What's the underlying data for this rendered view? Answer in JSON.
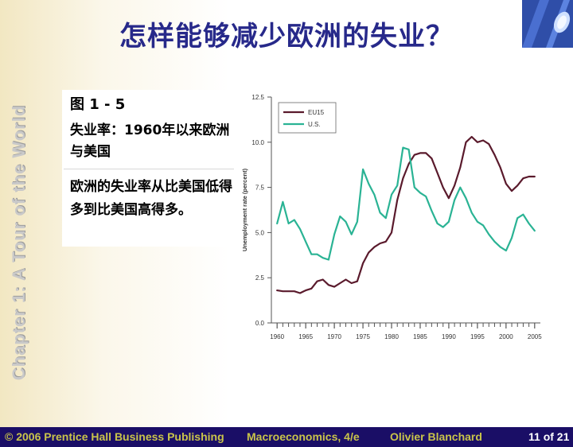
{
  "slide": {
    "title": "怎样能够减少欧洲的失业？",
    "side_label": "Chapter 1: A Tour of the World",
    "figure_number": "图 1 - 5",
    "figure_subtitle": "失业率：1960年以来欧洲与美国",
    "description": "欧洲的失业率从比美国低得多到比美国高得多。"
  },
  "footer": {
    "copyright": "© 2006 Prentice Hall Business Publishing",
    "book": "Macroeconomics, 4/e",
    "author": "Olivier Blanchard",
    "page": "11 of 21"
  },
  "colors": {
    "title": "#27298a",
    "footer_bg": "#1a0e66",
    "footer_gold": "#c9c44a",
    "eu15": "#5a1a2c",
    "us": "#2ab394"
  },
  "chart_data": {
    "type": "line",
    "ylabel": "Unemployment rate (percent)",
    "xlabel": "",
    "ylim": [
      0,
      12.5
    ],
    "xlim": [
      1959,
      2006
    ],
    "y_ticks": [
      "0.0",
      "2.5",
      "5.0",
      "7.5",
      "10.0",
      "12.5"
    ],
    "x_ticks": [
      "1960",
      "1965",
      "1970",
      "1975",
      "1980",
      "1985",
      "1990",
      "1995",
      "2000",
      "2005"
    ],
    "legend_position": "top-left",
    "grid": false,
    "series": [
      {
        "name": "EU15",
        "color": "#5a1a2c",
        "x": [
          1960,
          1961,
          1962,
          1963,
          1964,
          1965,
          1966,
          1967,
          1968,
          1969,
          1970,
          1971,
          1972,
          1973,
          1974,
          1975,
          1976,
          1977,
          1978,
          1979,
          1980,
          1981,
          1982,
          1983,
          1984,
          1985,
          1986,
          1987,
          1988,
          1989,
          1990,
          1991,
          1992,
          1993,
          1994,
          1995,
          1996,
          1997,
          1998,
          1999,
          2000,
          2001,
          2002,
          2003,
          2004,
          2005
        ],
        "y": [
          1.8,
          1.75,
          1.75,
          1.75,
          1.65,
          1.8,
          1.9,
          2.3,
          2.4,
          2.1,
          2.0,
          2.2,
          2.4,
          2.2,
          2.3,
          3.3,
          3.9,
          4.2,
          4.4,
          4.5,
          5.0,
          6.8,
          8.0,
          8.8,
          9.3,
          9.4,
          9.4,
          9.1,
          8.3,
          7.5,
          6.9,
          7.6,
          8.6,
          10.0,
          10.3,
          10.0,
          10.1,
          9.9,
          9.3,
          8.6,
          7.7,
          7.3,
          7.6,
          8.0,
          8.1,
          8.1
        ]
      },
      {
        "name": "U.S.",
        "color": "#2ab394",
        "x": [
          1960,
          1961,
          1962,
          1963,
          1964,
          1965,
          1966,
          1967,
          1968,
          1969,
          1970,
          1971,
          1972,
          1973,
          1974,
          1975,
          1976,
          1977,
          1978,
          1979,
          1980,
          1981,
          1982,
          1983,
          1984,
          1985,
          1986,
          1987,
          1988,
          1989,
          1990,
          1991,
          1992,
          1993,
          1994,
          1995,
          1996,
          1997,
          1998,
          1999,
          2000,
          2001,
          2002,
          2003,
          2004,
          2005
        ],
        "y": [
          5.5,
          6.7,
          5.5,
          5.7,
          5.2,
          4.5,
          3.8,
          3.8,
          3.6,
          3.5,
          4.9,
          5.9,
          5.6,
          4.9,
          5.6,
          8.5,
          7.7,
          7.1,
          6.1,
          5.8,
          7.1,
          7.6,
          9.7,
          9.6,
          7.5,
          7.2,
          7.0,
          6.2,
          5.5,
          5.3,
          5.6,
          6.8,
          7.5,
          6.9,
          6.1,
          5.6,
          5.4,
          4.9,
          4.5,
          4.2,
          4.0,
          4.7,
          5.8,
          6.0,
          5.5,
          5.1
        ]
      }
    ]
  }
}
